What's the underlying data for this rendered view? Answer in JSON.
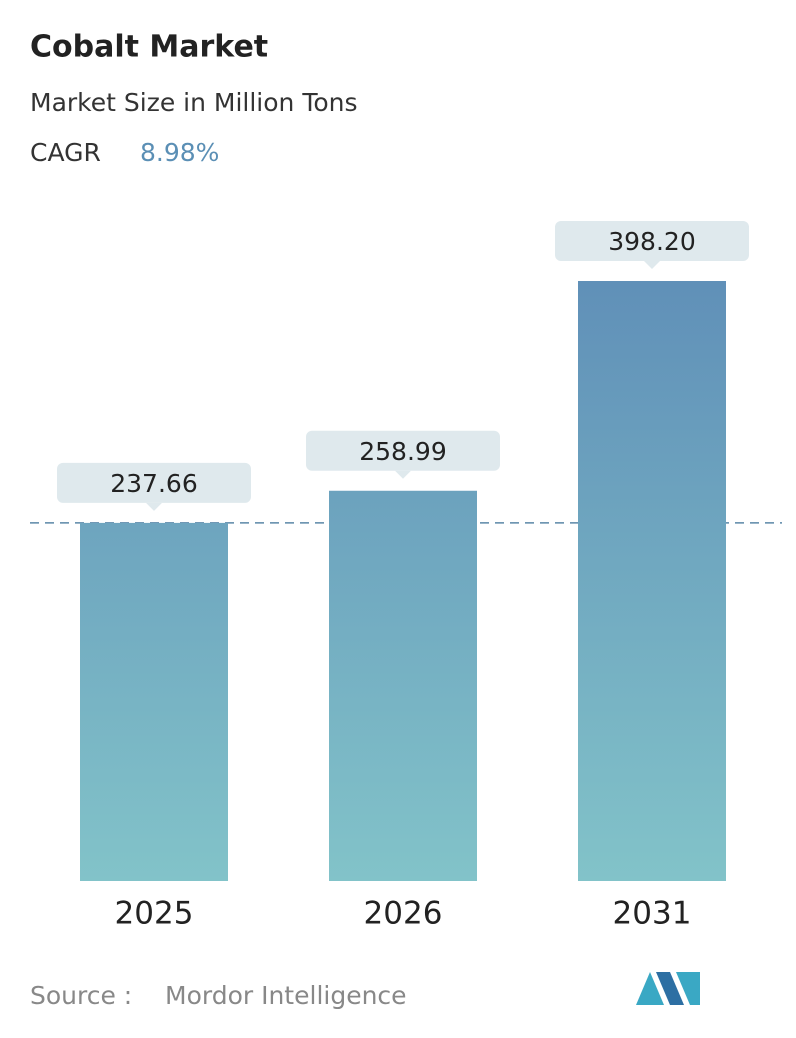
{
  "chart_data": {
    "type": "bar",
    "title": "Cobalt Market",
    "subtitle": "Market Size in Million Tons",
    "cagr_label": "CAGR",
    "cagr": "8.98%",
    "categories": [
      "2025",
      "2026",
      "2031"
    ],
    "values": [
      237.66,
      258.99,
      398.2
    ],
    "value_labels": [
      "237.66",
      "258.99",
      "398.20"
    ],
    "color": [
      "#6090b8",
      "#82c3c9"
    ],
    "source_label": "Source :",
    "source": "Mordor Intelligence"
  }
}
